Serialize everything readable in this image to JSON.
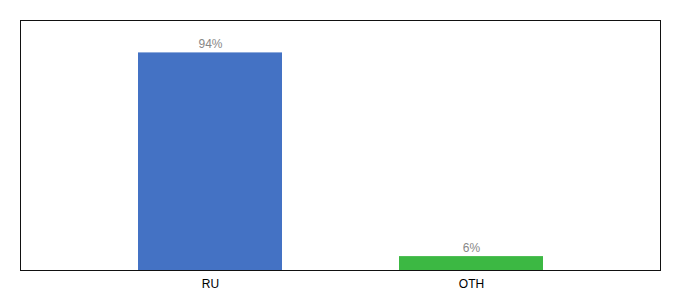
{
  "chart_data": {
    "type": "bar",
    "categories": [
      "RU",
      "OTH"
    ],
    "values": [
      94,
      6
    ],
    "value_labels": [
      "94%",
      "6%"
    ],
    "colors": [
      "#4472c4",
      "#3cb843"
    ],
    "data_labels": true,
    "ylim": [
      0,
      108
    ],
    "yticks": [],
    "tick_labels": "x",
    "grid": false
  }
}
